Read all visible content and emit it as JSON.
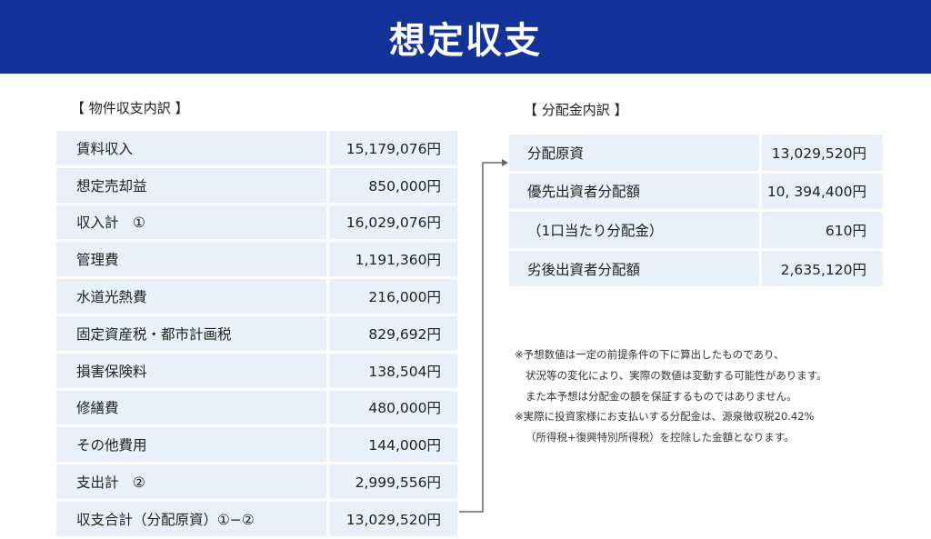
{
  "header": {
    "title": "想定収支"
  },
  "left_section": {
    "title": "【 物件収支内訳 】",
    "rows": [
      {
        "label": "賃料収入",
        "value": "15,179,076円"
      },
      {
        "label": "想定売却益",
        "value": "850,000円"
      },
      {
        "label": "収入計　①",
        "value": "16,029,076円"
      },
      {
        "label": "管理費",
        "value": "1,191,360円"
      },
      {
        "label": "水道光熱費",
        "value": "216,000円"
      },
      {
        "label": "固定資産税・都市計画税",
        "value": "829,692円"
      },
      {
        "label": "損害保険料",
        "value": "138,504円"
      },
      {
        "label": "修繕費",
        "value": "480,000円"
      },
      {
        "label": "その他費用",
        "value": "144,000円"
      },
      {
        "label": "支出計　②",
        "value": "2,999,556円"
      },
      {
        "label": "収支合計（分配原資）①−②",
        "value": "13,029,520円"
      }
    ]
  },
  "right_section": {
    "title": "【 分配金内訳 】",
    "rows": [
      {
        "label": "分配原資",
        "value": "13,029,520円"
      },
      {
        "label": "優先出資者分配額",
        "value": "10, 394,400円"
      },
      {
        "label": "（1口当たり分配金）",
        "value": "610円"
      },
      {
        "label": "劣後出資者分配額",
        "value": "2,635,120円"
      }
    ]
  },
  "notes": [
    "※予想数値は一定の前提条件の下に算出したものであり、",
    "状況等の変化により、実際の数値は変動する可能性があります。",
    "また本予想は分配金の額を保証するものではありません。",
    "※実際に投資家様にお支払いする分配金は、源泉徴収税20.42%",
    "（所得税+復興特別所得税）を控除した金額となります。"
  ],
  "colors": {
    "header_bg": "#13339a",
    "cell_bg": "#e9f0f9",
    "connector": "#666666"
  }
}
